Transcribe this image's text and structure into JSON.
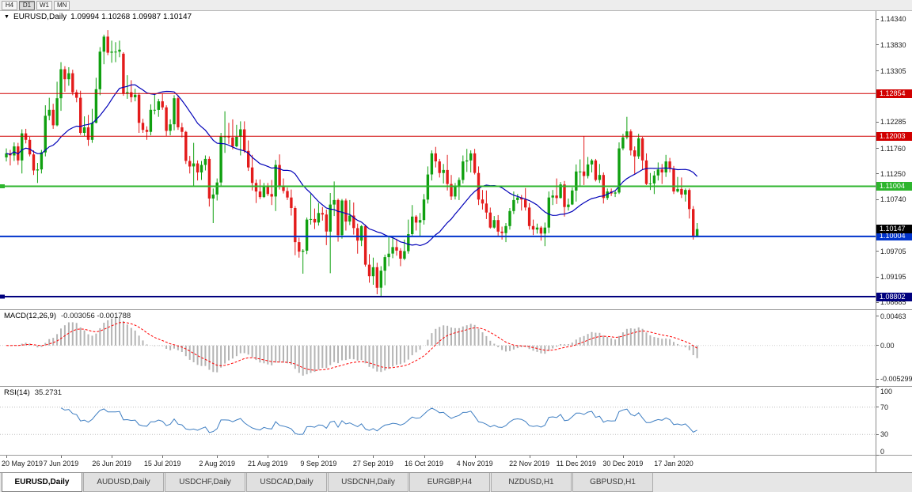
{
  "toolbar": {
    "timeframes": [
      "H4",
      "D1",
      "W1",
      "MN"
    ],
    "active_timeframe": "D1"
  },
  "main_title": {
    "symbol": "EURUSD,Daily",
    "ohlc": "1.09994 1.10268 1.09987 1.10147"
  },
  "tabs": [
    {
      "label": "EURUSD,Daily",
      "active": true
    },
    {
      "label": "AUDUSD,Daily",
      "active": false
    },
    {
      "label": "USDCHF,Daily",
      "active": false
    },
    {
      "label": "USDCAD,Daily",
      "active": false
    },
    {
      "label": "USDCNH,Daily",
      "active": false
    },
    {
      "label": "EURGBP,H4",
      "active": false
    },
    {
      "label": "NZDUSD,H1",
      "active": false
    },
    {
      "label": "GBPUSD,H1",
      "active": false
    }
  ],
  "chart_data": {
    "type": "candlestick",
    "symbol": "EURUSD",
    "timeframe": "Daily",
    "ohlc_current": {
      "open": "1.09994",
      "high": "1.10268",
      "low": "1.09987",
      "close": "1.10147"
    },
    "ylim": [
      1.0855,
      1.145
    ],
    "colors": {
      "up": "#10a010",
      "down": "#e31b1b",
      "ma": "#0000b8",
      "macd_hist": "#b4b4b4",
      "macd_signal": "#ff0000",
      "rsi": "#3e7ec2"
    },
    "ma_period": 20,
    "price_axis_labels": [
      "1.14340",
      "1.13830",
      "1.13305",
      "1.12285",
      "1.11760",
      "1.11250",
      "1.10740",
      "1.09705",
      "1.09195",
      "1.08685"
    ],
    "levels": [
      {
        "price": 1.12854,
        "label": "1.12854",
        "color": "#d10000",
        "width": 1,
        "anchor": false
      },
      {
        "price": 1.12003,
        "label": "1.12003",
        "color": "#d10000",
        "width": 1,
        "anchor": false
      },
      {
        "price": 1.11004,
        "label": "1.11004",
        "color": "#2db52d",
        "width": 2,
        "anchor": true
      },
      {
        "price": 1.10004,
        "label": "1.10004",
        "color": "#0033cc",
        "width": 2,
        "anchor": false
      },
      {
        "price": 1.08802,
        "label": "1.08802",
        "color": "#00007e",
        "width": 2,
        "anchor": true
      }
    ],
    "current_price_tag": {
      "price": 1.10147,
      "label": "1.10147",
      "bg": "#000000"
    },
    "date_ticks": [
      {
        "label": "20 May 2019",
        "i": 0
      },
      {
        "label": "7 Jun 2019",
        "i": 14
      },
      {
        "label": "26 Jun 2019",
        "i": 27
      },
      {
        "label": "15 Jul 2019",
        "i": 40
      },
      {
        "label": "2 Aug 2019",
        "i": 54
      },
      {
        "label": "21 Aug 2019",
        "i": 67
      },
      {
        "label": "9 Sep 2019",
        "i": 80
      },
      {
        "label": "27 Sep 2019",
        "i": 94
      },
      {
        "label": "16 Oct 2019",
        "i": 107
      },
      {
        "label": "4 Nov 2019",
        "i": 120
      },
      {
        "label": "22 Nov 2019",
        "i": 134
      },
      {
        "label": "11 Dec 2019",
        "i": 146
      },
      {
        "label": "30 Dec 2019",
        "i": 158
      },
      {
        "label": "17 Jan 2020",
        "i": 171
      }
    ],
    "macd": {
      "label": "MACD(12,26,9)",
      "values_text": "-0.003056 -0.001788",
      "params": [
        12,
        26,
        9
      ],
      "axis_labels": [
        "0.00463",
        "0.00",
        "-0.005299"
      ],
      "ylim": [
        -0.0064,
        0.0056
      ]
    },
    "rsi": {
      "label": "RSI(14)",
      "value_text": "35.2731",
      "period": 14,
      "axis_labels": [
        "100",
        "70",
        "30",
        "0"
      ],
      "levels": [
        30,
        70
      ]
    },
    "candles": [
      [
        1.1158,
        1.1176,
        1.115,
        1.1166
      ],
      [
        1.1166,
        1.1173,
        1.1142,
        1.1162
      ],
      [
        1.1162,
        1.1188,
        1.1151,
        1.118
      ],
      [
        1.118,
        1.1187,
        1.1143,
        1.1152
      ],
      [
        1.1152,
        1.1214,
        1.1126,
        1.1206
      ],
      [
        1.1206,
        1.1215,
        1.1186,
        1.1193
      ],
      [
        1.1193,
        1.1199,
        1.116,
        1.1164
      ],
      [
        1.1164,
        1.1172,
        1.1123,
        1.1132
      ],
      [
        1.1132,
        1.1147,
        1.1107,
        1.1134
      ],
      [
        1.1134,
        1.1173,
        1.1126,
        1.1168
      ],
      [
        1.1168,
        1.1262,
        1.116,
        1.1241
      ],
      [
        1.1241,
        1.1277,
        1.1232,
        1.1253
      ],
      [
        1.1253,
        1.1265,
        1.1215,
        1.1222
      ],
      [
        1.1222,
        1.1309,
        1.122,
        1.1276
      ],
      [
        1.1276,
        1.1348,
        1.1251,
        1.1334
      ],
      [
        1.1334,
        1.134,
        1.1289,
        1.1314
      ],
      [
        1.1314,
        1.1338,
        1.1301,
        1.1326
      ],
      [
        1.1326,
        1.1333,
        1.1282,
        1.1288
      ],
      [
        1.1288,
        1.1293,
        1.1268,
        1.1277
      ],
      [
        1.1277,
        1.1291,
        1.1203,
        1.1207
      ],
      [
        1.1207,
        1.124,
        1.12,
        1.1218
      ],
      [
        1.1218,
        1.1243,
        1.1181,
        1.1193
      ],
      [
        1.1193,
        1.1255,
        1.1187,
        1.1227
      ],
      [
        1.1227,
        1.1317,
        1.1226,
        1.1294
      ],
      [
        1.1294,
        1.1378,
        1.1282,
        1.1369
      ],
      [
        1.1369,
        1.1403,
        1.1344,
        1.1399
      ],
      [
        1.1399,
        1.1412,
        1.1362,
        1.1367
      ],
      [
        1.1367,
        1.1391,
        1.1347,
        1.1369
      ],
      [
        1.1369,
        1.1388,
        1.1348,
        1.1369
      ],
      [
        1.1369,
        1.1391,
        1.1358,
        1.1373
      ],
      [
        1.1365,
        1.1368,
        1.1281,
        1.1285
      ],
      [
        1.1285,
        1.1322,
        1.1275,
        1.1288
      ],
      [
        1.1288,
        1.1312,
        1.1268,
        1.1278
      ],
      [
        1.1278,
        1.1295,
        1.127,
        1.1283
      ],
      [
        1.1283,
        1.1287,
        1.1207,
        1.1227
      ],
      [
        1.1227,
        1.1235,
        1.1207,
        1.1213
      ],
      [
        1.1213,
        1.122,
        1.1193,
        1.1209
      ],
      [
        1.1209,
        1.1264,
        1.1202,
        1.1253
      ],
      [
        1.1253,
        1.1285,
        1.1244,
        1.1253
      ],
      [
        1.1253,
        1.1275,
        1.1239,
        1.127
      ],
      [
        1.127,
        1.1285,
        1.1253,
        1.1258
      ],
      [
        1.1258,
        1.1262,
        1.1201,
        1.1211
      ],
      [
        1.1211,
        1.1234,
        1.1202,
        1.1224
      ],
      [
        1.1224,
        1.1282,
        1.1212,
        1.1276
      ],
      [
        1.1276,
        1.1282,
        1.1213,
        1.1218
      ],
      [
        1.1218,
        1.1227,
        1.1198,
        1.1209
      ],
      [
        1.1209,
        1.1211,
        1.1145,
        1.1151
      ],
      [
        1.1151,
        1.1161,
        1.1126,
        1.114
      ],
      [
        1.114,
        1.1187,
        1.1101,
        1.1146
      ],
      [
        1.1146,
        1.1152,
        1.1112,
        1.1128
      ],
      [
        1.1128,
        1.1151,
        1.1113,
        1.1143
      ],
      [
        1.1143,
        1.1162,
        1.1132,
        1.1155
      ],
      [
        1.1155,
        1.116,
        1.106,
        1.1076
      ],
      [
        1.1076,
        1.1096,
        1.1027,
        1.1084
      ],
      [
        1.1084,
        1.1116,
        1.1072,
        1.1108
      ],
      [
        1.1108,
        1.1207,
        1.1101,
        1.12
      ],
      [
        1.12,
        1.125,
        1.1167,
        1.12
      ],
      [
        1.12,
        1.1227,
        1.1185,
        1.1198
      ],
      [
        1.1198,
        1.1234,
        1.1174,
        1.118
      ],
      [
        1.118,
        1.1223,
        1.1178,
        1.1199
      ],
      [
        1.1199,
        1.123,
        1.1162,
        1.1214
      ],
      [
        1.1214,
        1.123,
        1.1167,
        1.1171
      ],
      [
        1.1171,
        1.1192,
        1.1131,
        1.1138
      ],
      [
        1.1138,
        1.1163,
        1.1092,
        1.1107
      ],
      [
        1.1107,
        1.1114,
        1.1067,
        1.109
      ],
      [
        1.109,
        1.1114,
        1.1075,
        1.1079
      ],
      [
        1.1079,
        1.1107,
        1.1077,
        1.11
      ],
      [
        1.11,
        1.1107,
        1.1081,
        1.1085
      ],
      [
        1.1085,
        1.1113,
        1.1063,
        1.108
      ],
      [
        1.108,
        1.1153,
        1.1051,
        1.1143
      ],
      [
        1.1143,
        1.1164,
        1.1094,
        1.1101
      ],
      [
        1.1101,
        1.1116,
        1.1086,
        1.1091
      ],
      [
        1.1091,
        1.1098,
        1.1073,
        1.1078
      ],
      [
        1.1078,
        1.1094,
        1.1042,
        1.1057
      ],
      [
        1.1057,
        1.1061,
        1.0963,
        1.0989
      ],
      [
        1.0989,
        1.0998,
        1.0958,
        1.097
      ],
      [
        1.097,
        1.0975,
        1.0926,
        1.0972
      ],
      [
        1.0972,
        1.1038,
        1.0965,
        1.1034
      ],
      [
        1.1034,
        1.1085,
        1.1024,
        1.1035
      ],
      [
        1.1035,
        1.1056,
        1.1015,
        1.1028
      ],
      [
        1.1028,
        1.1067,
        1.1022,
        1.1047
      ],
      [
        1.1047,
        1.1059,
        1.1032,
        1.1044
      ],
      [
        1.1044,
        1.1054,
        1.0983,
        1.101
      ],
      [
        1.101,
        1.1087,
        1.0927,
        1.1064
      ],
      [
        1.1064,
        1.111,
        1.1041,
        1.1073
      ],
      [
        1.1073,
        1.1076,
        1.099,
        1.1003
      ],
      [
        1.1003,
        1.1075,
        1.0996,
        1.1072
      ],
      [
        1.1072,
        1.1076,
        1.1012,
        1.103
      ],
      [
        1.103,
        1.1073,
        1.1023,
        1.1042
      ],
      [
        1.1042,
        1.1068,
        1.1004,
        1.1017
      ],
      [
        1.1017,
        1.1026,
        1.0966,
        1.0992
      ],
      [
        1.0992,
        1.1023,
        1.0981,
        1.1021
      ],
      [
        1.1021,
        1.1024,
        1.094,
        1.0944
      ],
      [
        1.0944,
        1.0965,
        1.0908,
        1.0921
      ],
      [
        1.0921,
        1.0958,
        1.0904,
        1.0939
      ],
      [
        1.0939,
        1.0948,
        1.0885,
        1.0898
      ],
      [
        1.0898,
        1.0941,
        1.0879,
        1.0932
      ],
      [
        1.0932,
        1.0964,
        1.0903,
        1.0959
      ],
      [
        1.0959,
        1.0999,
        1.0941,
        1.0966
      ],
      [
        1.0966,
        1.0999,
        1.0957,
        1.0979
      ],
      [
        1.0979,
        1.0996,
        1.0962,
        1.0972
      ],
      [
        1.0972,
        1.0977,
        1.0941,
        1.0956
      ],
      [
        1.0956,
        1.0994,
        1.0953,
        1.0971
      ],
      [
        1.0971,
        1.1034,
        1.0966,
        1.1005
      ],
      [
        1.1005,
        1.1063,
        1.1002,
        1.104
      ],
      [
        1.104,
        1.1043,
        1.1012,
        1.1028
      ],
      [
        1.1028,
        1.1047,
        1.1001,
        1.1033
      ],
      [
        1.1033,
        1.1085,
        1.1024,
        1.1074
      ],
      [
        1.1074,
        1.114,
        1.1066,
        1.1124
      ],
      [
        1.1124,
        1.1172,
        1.1112,
        1.1166
      ],
      [
        1.1166,
        1.1179,
        1.1138,
        1.115
      ],
      [
        1.115,
        1.1155,
        1.1118,
        1.1127
      ],
      [
        1.1127,
        1.1145,
        1.1106,
        1.1133
      ],
      [
        1.1133,
        1.1163,
        1.1092,
        1.1105
      ],
      [
        1.1105,
        1.1123,
        1.1073,
        1.108
      ],
      [
        1.108,
        1.1107,
        1.1074,
        1.1099
      ],
      [
        1.1099,
        1.1118,
        1.1073,
        1.1113
      ],
      [
        1.1113,
        1.1162,
        1.1106,
        1.115
      ],
      [
        1.115,
        1.1175,
        1.1129,
        1.1152
      ],
      [
        1.1152,
        1.1172,
        1.1128,
        1.1166
      ],
      [
        1.1166,
        1.1175,
        1.1124,
        1.1127
      ],
      [
        1.1127,
        1.114,
        1.1063,
        1.1074
      ],
      [
        1.1074,
        1.1093,
        1.1054,
        1.1066
      ],
      [
        1.1066,
        1.1092,
        1.1035,
        1.1048
      ],
      [
        1.1048,
        1.1058,
        1.1016,
        1.1018
      ],
      [
        1.1018,
        1.1041,
        1.1016,
        1.1033
      ],
      [
        1.1033,
        1.1043,
        1.1002,
        1.101
      ],
      [
        1.101,
        1.102,
        1.0994,
        1.1007
      ],
      [
        1.1007,
        1.1027,
        1.0989,
        1.1021
      ],
      [
        1.1021,
        1.1057,
        1.1014,
        1.1051
      ],
      [
        1.1051,
        1.109,
        1.1045,
        1.1073
      ],
      [
        1.1073,
        1.1085,
        1.1066,
        1.1078
      ],
      [
        1.1078,
        1.1083,
        1.1052,
        1.1074
      ],
      [
        1.1074,
        1.1097,
        1.1052,
        1.1058
      ],
      [
        1.1058,
        1.1067,
        1.1014,
        1.1021
      ],
      [
        1.1021,
        1.1034,
        1.1003,
        1.1014
      ],
      [
        1.1014,
        1.1026,
        1.1006,
        1.1018
      ],
      [
        1.1018,
        1.1021,
        1.0992,
        1.1006
      ],
      [
        1.1006,
        1.1028,
        1.0981,
        1.1018
      ],
      [
        1.1018,
        1.109,
        1.1007,
        1.1078
      ],
      [
        1.1078,
        1.1093,
        1.1063,
        1.1082
      ],
      [
        1.1082,
        1.1116,
        1.1065,
        1.1077
      ],
      [
        1.1077,
        1.1109,
        1.1076,
        1.1104
      ],
      [
        1.1104,
        1.1111,
        1.104,
        1.1059
      ],
      [
        1.1059,
        1.1076,
        1.1052,
        1.1064
      ],
      [
        1.1064,
        1.1098,
        1.1063,
        1.1092
      ],
      [
        1.1092,
        1.1144,
        1.107,
        1.113
      ],
      [
        1.113,
        1.1154,
        1.1102,
        1.113
      ],
      [
        1.113,
        1.12,
        1.1103,
        1.1121
      ],
      [
        1.1121,
        1.1159,
        1.1116,
        1.1144
      ],
      [
        1.1144,
        1.1155,
        1.1128,
        1.1152
      ],
      [
        1.1152,
        1.1155,
        1.111,
        1.1113
      ],
      [
        1.1113,
        1.1145,
        1.1107,
        1.1123
      ],
      [
        1.1123,
        1.1128,
        1.1066,
        1.1077
      ],
      [
        1.1077,
        1.1096,
        1.1073,
        1.109
      ],
      [
        1.109,
        1.1096,
        1.1081,
        1.1086
      ],
      [
        1.1086,
        1.1092,
        1.1079,
        1.1088
      ],
      [
        1.1088,
        1.1188,
        1.1085,
        1.1176
      ],
      [
        1.1176,
        1.1205,
        1.1172,
        1.1198
      ],
      [
        1.1198,
        1.1239,
        1.1194,
        1.121
      ],
      [
        1.121,
        1.1214,
        1.1162,
        1.1172
      ],
      [
        1.1172,
        1.118,
        1.1125,
        1.116
      ],
      [
        1.116,
        1.1205,
        1.1155,
        1.1196
      ],
      [
        1.1196,
        1.1199,
        1.1133,
        1.1152
      ],
      [
        1.1152,
        1.1166,
        1.1103,
        1.1105
      ],
      [
        1.1105,
        1.1127,
        1.1093,
        1.1106
      ],
      [
        1.1106,
        1.1131,
        1.1085,
        1.1122
      ],
      [
        1.1122,
        1.1148,
        1.1112,
        1.1134
      ],
      [
        1.1134,
        1.1145,
        1.1105,
        1.1128
      ],
      [
        1.1128,
        1.1163,
        1.1119,
        1.115
      ],
      [
        1.115,
        1.1157,
        1.1128,
        1.1136
      ],
      [
        1.1136,
        1.1141,
        1.1085,
        1.109
      ],
      [
        1.109,
        1.1119,
        1.1088,
        1.1095
      ],
      [
        1.1095,
        1.1118,
        1.1077,
        1.1084
      ],
      [
        1.1084,
        1.1096,
        1.107,
        1.1093
      ],
      [
        1.1093,
        1.1096,
        1.1036,
        1.1055
      ],
      [
        1.1055,
        1.1061,
        1.0994,
        1.1
      ],
      [
        1.0999,
        1.1027,
        1.0999,
        1.1015
      ]
    ]
  }
}
